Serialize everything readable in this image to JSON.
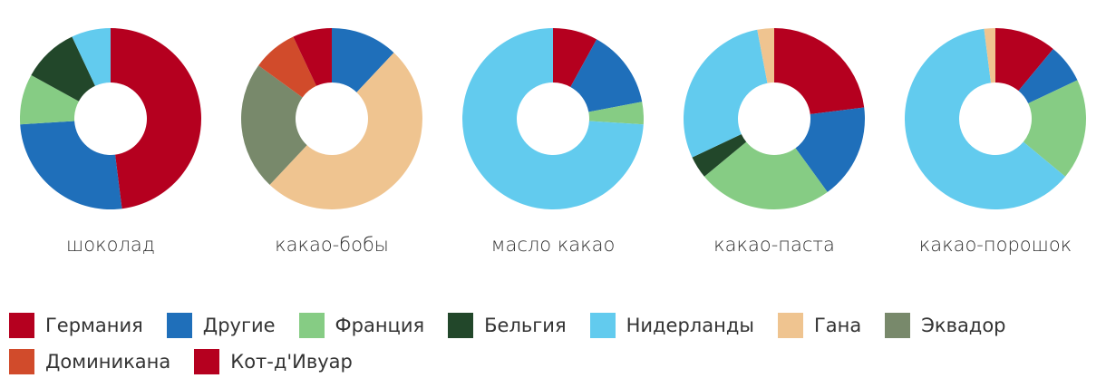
{
  "chart_data": [
    {
      "type": "pie",
      "title": "шоколад",
      "categories": [
        "Германия",
        "Другие",
        "Франция",
        "Бельгия",
        "Нидерланды"
      ],
      "values": [
        48,
        26,
        9,
        10,
        7
      ]
    },
    {
      "type": "pie",
      "title": "какао-бобы",
      "categories": [
        "Другие",
        "Гана",
        "Эквадор",
        "Доминикана",
        "Кот-д'Ивуар"
      ],
      "values": [
        12,
        50,
        23,
        8,
        7
      ]
    },
    {
      "type": "pie",
      "title": "масло какао",
      "categories": [
        "Германия",
        "Другие",
        "Франция",
        "Нидерланды"
      ],
      "values": [
        8,
        14,
        4,
        74
      ]
    },
    {
      "type": "pie",
      "title": "какао-паста",
      "categories": [
        "Германия",
        "Другие",
        "Франция",
        "Бельгия",
        "Нидерланды",
        "Гана"
      ],
      "values": [
        23,
        17,
        24,
        4,
        29,
        3
      ]
    },
    {
      "type": "pie",
      "title": "какао-порошок",
      "categories": [
        "Германия",
        "Другие",
        "Франция",
        "Нидерланды",
        "Гана"
      ],
      "values": [
        11,
        7,
        18,
        62,
        2
      ]
    }
  ],
  "legend": [
    {
      "name": "Германия",
      "color": "#b5001f"
    },
    {
      "name": "Другие",
      "color": "#1f6fba"
    },
    {
      "name": "Франция",
      "color": "#86cc84"
    },
    {
      "name": "Бельгия",
      "color": "#22472a"
    },
    {
      "name": "Нидерланды",
      "color": "#62cbee"
    },
    {
      "name": "Гана",
      "color": "#efc490"
    },
    {
      "name": "Эквадор",
      "color": "#78896b"
    },
    {
      "name": "Доминикана",
      "color": "#d14b2b"
    },
    {
      "name": "Кот-д'Ивуар",
      "color": "#b5001f"
    }
  ]
}
